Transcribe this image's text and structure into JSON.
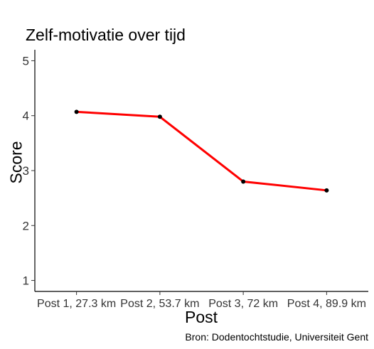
{
  "chart_data": {
    "type": "line",
    "title": "Zelf-motivatie over tijd",
    "xlabel": "Post",
    "ylabel": "Score",
    "caption": "Bron: Dodentochtstudie, Universiteit Gent",
    "categories": [
      "Post 1, 27.3 km",
      "Post 2, 53.7 km",
      "Post 3, 72 km",
      "Post 4, 89.9 km"
    ],
    "series": [
      {
        "name": "Zelf-motivatie",
        "values": [
          4.07,
          3.98,
          2.8,
          2.64
        ],
        "color": "#ff0000"
      }
    ],
    "yticks": [
      1,
      2,
      3,
      4,
      5
    ],
    "ylim": [
      0.8,
      5.2
    ],
    "grid": false,
    "point_color": "#000000"
  }
}
